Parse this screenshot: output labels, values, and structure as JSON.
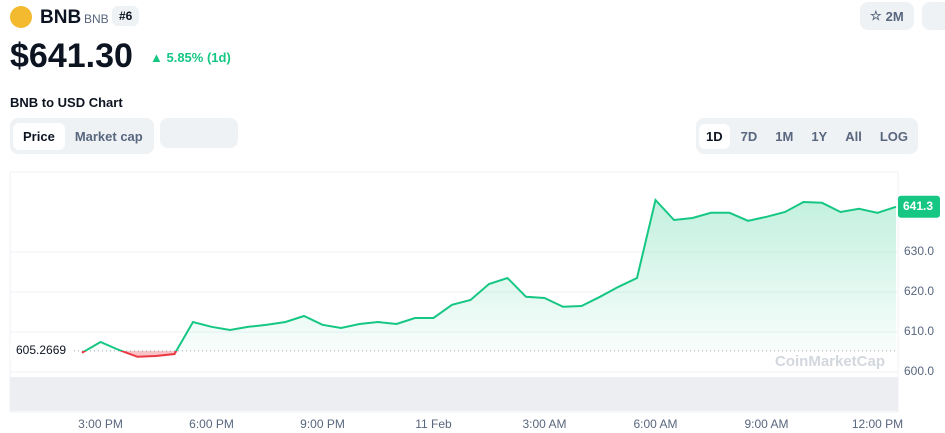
{
  "header": {
    "name": "BNB",
    "symbol": "BNB",
    "rank": "#6",
    "price": "$641.30",
    "change": "5.85% (1d)",
    "watchlist": "2M",
    "chart_heading": "BNB to USD Chart"
  },
  "tabs": [
    "Price",
    "Market cap"
  ],
  "ranges": [
    "1D",
    "7D",
    "1M",
    "1Y",
    "All",
    "LOG"
  ],
  "watermark": "CoinMarketCap",
  "chart_data": {
    "type": "line",
    "categories": [
      null,
      "3:00 PM",
      null,
      null,
      null,
      null,
      null,
      "6:00 PM",
      null,
      null,
      null,
      null,
      null,
      "9:00 PM",
      null,
      null,
      null,
      null,
      null,
      "11 Feb",
      null,
      null,
      null,
      null,
      null,
      "3:00 AM",
      null,
      null,
      null,
      null,
      null,
      "6:00 AM",
      null,
      null,
      null,
      null,
      null,
      "9:00 AM",
      null,
      null,
      null,
      null,
      null,
      "12:00 PM",
      null
    ],
    "values": [
      604.8,
      607.5,
      605.5,
      603.8,
      604,
      604.5,
      612.5,
      611.3,
      610.5,
      611.3,
      611.8,
      612.5,
      614,
      611.8,
      611,
      612,
      612.5,
      612,
      613.5,
      613.5,
      616.8,
      618,
      622,
      623.5,
      618.8,
      618.5,
      616.3,
      616.5,
      618.8,
      621.3,
      623.5,
      643,
      638,
      638.5,
      639.8,
      639.8,
      637.8,
      638.8,
      640,
      642.5,
      642.3,
      640,
      640.8,
      639.8,
      641.3
    ],
    "color": "#16c784",
    "below_color": "#ea3943",
    "baseline": 605.2669,
    "last_price": 641.3,
    "ylim": [
      600,
      650
    ],
    "yticks": [
      {
        "value": 600,
        "label": "600.0"
      },
      {
        "value": 610,
        "label": "610.0"
      },
      {
        "value": 620,
        "label": "620.0"
      },
      {
        "value": 630,
        "label": "630.0"
      }
    ],
    "grid": true
  }
}
